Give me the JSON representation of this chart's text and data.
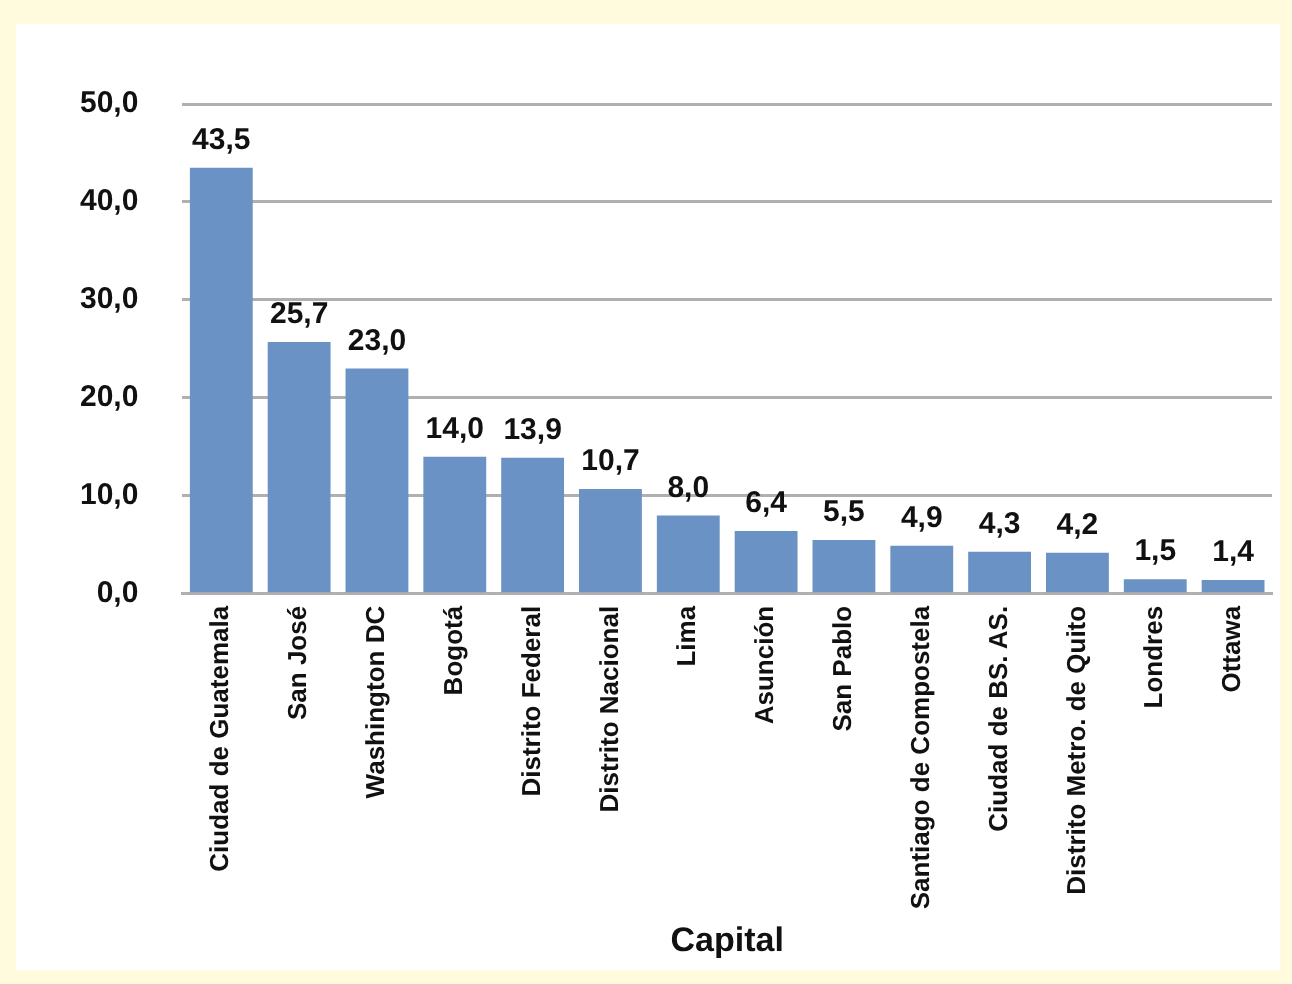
{
  "chart_data": {
    "type": "bar",
    "xlabel": "Capital",
    "categories": [
      "Ciudad de Guatemala",
      "San José",
      "Washington DC",
      "Bogotá",
      "Distrito Federal",
      "Distrito Nacional",
      "Lima",
      "Asunción",
      "San Pablo",
      "Santiago de Compostela",
      "Ciudad de BS. AS.",
      "Distrito Metro. de Quito",
      "Londres",
      "Ottawa"
    ],
    "values": [
      43.5,
      25.7,
      23.0,
      14.0,
      13.9,
      10.7,
      8.0,
      6.4,
      5.5,
      4.9,
      4.3,
      4.2,
      1.5,
      1.4
    ],
    "value_labels": [
      "43,5",
      "25,7",
      "23,0",
      "14,0",
      "13,9",
      "10,7",
      "8,0",
      "6,4",
      "5,5",
      "4,9",
      "4,3",
      "4,2",
      "1,5",
      "1,4"
    ],
    "color": "#6b92c4",
    "ylim": [
      0,
      50
    ],
    "yticks": [
      {
        "value": 0,
        "label": "0,0"
      },
      {
        "value": 10,
        "label": "10,0"
      },
      {
        "value": 20,
        "label": "20,0"
      },
      {
        "value": 30,
        "label": "30,0"
      },
      {
        "value": 40,
        "label": "40,0"
      },
      {
        "value": 50,
        "label": "50,0"
      }
    ],
    "grid": "y",
    "legend": false
  }
}
